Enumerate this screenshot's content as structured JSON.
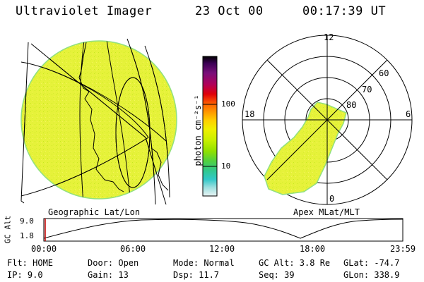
{
  "header": {
    "title": "Ultraviolet Imager",
    "date": "23 Oct 00",
    "time": "00:17:39 UT"
  },
  "colorbar": {
    "unit_label": "photon cm⁻²s⁻¹",
    "ticks": [
      "100",
      "10"
    ],
    "colors": [
      "#000000",
      "#3b0055",
      "#7a0f7a",
      "#b0005a",
      "#e0000a",
      "#ff6000",
      "#ff9a00",
      "#ffd000",
      "#f0f000",
      "#c8f000",
      "#90e000",
      "#50d040",
      "#30c890",
      "#30c8c8",
      "#a0e0e0",
      "#e8f4f4"
    ]
  },
  "geographic": {
    "label": "Geographic Lat/Lon",
    "fill_color": "#e6f23a"
  },
  "polar": {
    "label": "Apex MLat/MLT",
    "mlt_labels": {
      "top": "12",
      "left": "18",
      "right": "6",
      "bottom": "0"
    },
    "lat_labels": [
      "60",
      "70",
      "80"
    ]
  },
  "altitude_plot": {
    "ylabel": "GC Alt",
    "y_ticks": [
      "9.0",
      "1.8"
    ],
    "x_ticks": [
      "00:00",
      "06:00",
      "12:00",
      "18:00",
      "23:59"
    ],
    "marker_color": "#cc0000"
  },
  "status": {
    "flt": "Flt: HOME",
    "ip": "IP:  9.0",
    "door": "Door: Open",
    "gain": "Gain: 13",
    "mode": "Mode: Normal",
    "dsp": "Dsp:    11.7",
    "gcalt": "GC Alt: 3.8 Re",
    "seq": "Seq: 39",
    "glat": "GLat: -74.7",
    "glon": "GLon: 338.9"
  }
}
